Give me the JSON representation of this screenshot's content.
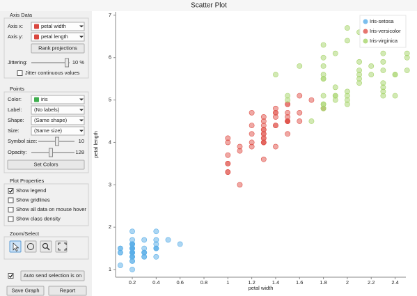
{
  "window": {
    "title": "Scatter Plot"
  },
  "axis_data": {
    "title": "Axis Data",
    "x_label": "Axis x:",
    "x_value": "petal width",
    "y_label": "Axis y:",
    "y_value": "petal length",
    "rank_button": "Rank projections",
    "jitter_label": "Jittering:",
    "jitter_value": "10 %",
    "jitter_continuous": "Jitter continuous values"
  },
  "points": {
    "title": "Points",
    "color_label": "Color:",
    "color_value": "iris",
    "label_label": "Label:",
    "label_value": "(No labels)",
    "shape_label": "Shape:",
    "shape_value": "(Same shape)",
    "size_label": "Size:",
    "size_value": "(Same size)",
    "symbol_size_label": "Symbol size:",
    "symbol_size_value": "10",
    "opacity_label": "Opacity:",
    "opacity_value": "128",
    "set_colors": "Set Colors"
  },
  "plot_properties": {
    "title": "Plot Properties",
    "options": [
      {
        "label": "Show legend",
        "checked": true
      },
      {
        "label": "Show gridlines",
        "checked": false
      },
      {
        "label": "Show all data on mouse hover",
        "checked": false
      },
      {
        "label": "Show class density",
        "checked": false
      }
    ]
  },
  "zoom_select": {
    "title": "Zoom/Select"
  },
  "auto_send": {
    "label": "Auto send selection is on",
    "checked": true
  },
  "buttons": [
    "Save Graph",
    "Report"
  ],
  "chart_data": {
    "type": "scatter",
    "x_label": "petal width",
    "y_label": "petal length",
    "xlim": [
      0.06,
      2.49
    ],
    "ylim": [
      0.82,
      7.08
    ],
    "xticks": [
      0.2,
      0.4,
      0.6,
      0.8,
      1,
      1.2,
      1.4,
      1.6,
      1.8,
      2,
      2.2,
      2.4
    ],
    "yticks": [
      1,
      2,
      3,
      4,
      5,
      6,
      7
    ],
    "grid": false,
    "legend": "top-right",
    "series": [
      {
        "name": "Iris-setosa",
        "color": "#5aaee8",
        "x": [
          0.2,
          0.2,
          0.2,
          0.2,
          0.2,
          0.4,
          0.3,
          0.2,
          0.2,
          0.1,
          0.2,
          0.2,
          0.1,
          0.1,
          0.2,
          0.4,
          0.4,
          0.3,
          0.3,
          0.3,
          0.2,
          0.4,
          0.2,
          0.5,
          0.2,
          0.2,
          0.4,
          0.2,
          0.2,
          0.2,
          0.2,
          0.4,
          0.1,
          0.2,
          0.2,
          0.2,
          0.2,
          0.1,
          0.2,
          0.2,
          0.3,
          0.3,
          0.2,
          0.6,
          0.4,
          0.3,
          0.2,
          0.2,
          0.2,
          0.2
        ],
        "values": [
          1.4,
          1.4,
          1.3,
          1.5,
          1.4,
          1.7,
          1.4,
          1.5,
          1.4,
          1.5,
          1.5,
          1.6,
          1.4,
          1.1,
          1.2,
          1.5,
          1.3,
          1.4,
          1.7,
          1.5,
          1.7,
          1.5,
          1.0,
          1.7,
          1.9,
          1.6,
          1.6,
          1.5,
          1.4,
          1.6,
          1.6,
          1.5,
          1.5,
          1.4,
          1.5,
          1.2,
          1.3,
          1.4,
          1.3,
          1.5,
          1.3,
          1.3,
          1.3,
          1.6,
          1.9,
          1.4,
          1.6,
          1.4,
          1.5,
          1.4
        ]
      },
      {
        "name": "Iris-versicolor",
        "color": "#e0524a",
        "x": [
          1.4,
          1.5,
          1.5,
          1.3,
          1.5,
          1.3,
          1.6,
          1.0,
          1.3,
          1.4,
          1.0,
          1.5,
          1.0,
          1.4,
          1.3,
          1.4,
          1.5,
          1.0,
          1.5,
          1.1,
          1.8,
          1.3,
          1.5,
          1.2,
          1.3,
          1.4,
          1.4,
          1.7,
          1.5,
          1.0,
          1.1,
          1.0,
          1.2,
          1.6,
          1.5,
          1.6,
          1.5,
          1.3,
          1.3,
          1.3,
          1.2,
          1.4,
          1.2,
          1.0,
          1.3,
          1.2,
          1.3,
          1.3,
          1.1,
          1.3
        ],
        "values": [
          4.7,
          4.5,
          4.9,
          4.0,
          4.6,
          4.5,
          4.7,
          3.3,
          4.6,
          3.9,
          3.5,
          4.2,
          4.0,
          4.7,
          3.6,
          4.4,
          4.5,
          4.1,
          4.5,
          3.9,
          4.8,
          4.0,
          4.9,
          4.7,
          4.3,
          4.4,
          4.8,
          5.0,
          4.5,
          3.5,
          3.8,
          3.7,
          3.9,
          5.1,
          4.5,
          4.5,
          4.7,
          4.4,
          4.1,
          4.0,
          4.4,
          4.6,
          4.0,
          3.3,
          4.2,
          4.2,
          4.2,
          4.3,
          3.0,
          4.1
        ]
      },
      {
        "name": "Iris-virginica",
        "color": "#a6d46a",
        "x": [
          2.5,
          1.9,
          2.1,
          1.8,
          2.2,
          2.1,
          1.7,
          1.8,
          1.8,
          2.5,
          2.0,
          1.9,
          2.1,
          2.0,
          2.4,
          2.3,
          1.8,
          2.2,
          2.3,
          1.5,
          2.3,
          2.0,
          2.0,
          1.8,
          2.1,
          1.8,
          1.8,
          1.8,
          2.1,
          1.6,
          1.9,
          2.0,
          2.2,
          1.5,
          1.4,
          2.3,
          2.4,
          1.8,
          1.8,
          2.1,
          2.4,
          2.3,
          1.9,
          2.3,
          2.5,
          2.3,
          1.9,
          2.0,
          2.3,
          1.8
        ],
        "values": [
          6.0,
          5.1,
          5.9,
          5.6,
          5.8,
          6.6,
          4.5,
          6.3,
          5.8,
          6.1,
          5.1,
          5.3,
          5.5,
          5.0,
          5.1,
          5.3,
          5.5,
          6.7,
          6.9,
          5.0,
          5.7,
          4.9,
          6.7,
          4.9,
          5.7,
          6.0,
          4.8,
          4.9,
          5.6,
          5.8,
          6.1,
          6.4,
          5.6,
          5.1,
          5.6,
          6.1,
          5.6,
          5.5,
          4.8,
          5.4,
          5.6,
          5.1,
          5.1,
          5.9,
          5.7,
          5.2,
          5.0,
          5.2,
          5.4,
          5.1
        ]
      }
    ]
  }
}
